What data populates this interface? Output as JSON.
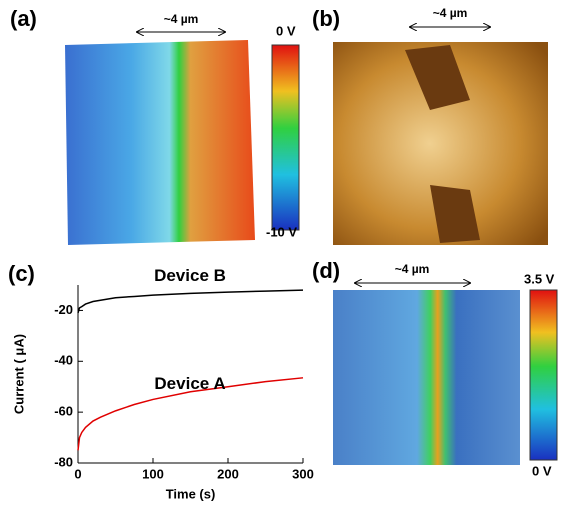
{
  "panels": [
    {
      "label": "(a)",
      "scale": "~4 µm",
      "colorbar": [
        "0 V",
        "-10 V"
      ]
    },
    {
      "label": "(b)",
      "scale": "~4 µm"
    },
    {
      "label": "(c)"
    },
    {
      "label": "(d)",
      "scale": "~4 µm",
      "colorbar": [
        "3.5 V",
        "0 V"
      ]
    }
  ],
  "chart_data": {
    "type": "line",
    "x_label": "Time (s)",
    "y_label": "Current ( μA)",
    "x": [
      0,
      2,
      5,
      10,
      20,
      30,
      50,
      75,
      100,
      150,
      200,
      250,
      300
    ],
    "series": [
      {
        "name": "Device B",
        "color": "#000000",
        "values": [
          -21,
          -19,
          -18.5,
          -17.5,
          -16.5,
          -16,
          -15,
          -14.5,
          -14,
          -13.3,
          -12.8,
          -12.4,
          -12
        ]
      },
      {
        "name": "Device A",
        "color": "#e00000",
        "values": [
          -75,
          -70,
          -68,
          -66,
          -63.5,
          -62,
          -59.5,
          -57,
          -55,
          -52,
          -50,
          -48,
          -46.5
        ]
      }
    ],
    "xlim": [
      0,
      300
    ],
    "xticks": [
      0,
      100,
      200,
      300
    ],
    "ylim": [
      -80,
      -10
    ],
    "yticks": [
      -20,
      -40,
      -60,
      -80
    ]
  }
}
